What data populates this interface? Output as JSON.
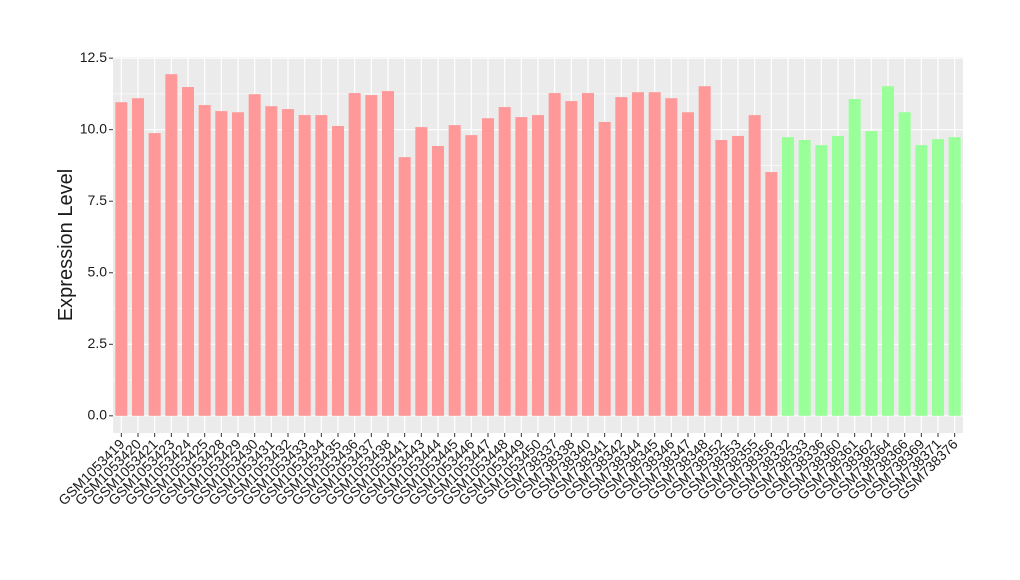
{
  "chart_data": {
    "type": "bar",
    "y_label": "Expression Level",
    "categories": [
      "GSM1053419",
      "GSM1053420",
      "GSM1053421",
      "GSM1053423",
      "GSM1053424",
      "GSM1053425",
      "GSM1053428",
      "GSM1053429",
      "GSM1053430",
      "GSM1053431",
      "GSM1053432",
      "GSM1053433",
      "GSM1053434",
      "GSM1053435",
      "GSM1053436",
      "GSM1053437",
      "GSM1053438",
      "GSM1053441",
      "GSM1053443",
      "GSM1053444",
      "GSM1053445",
      "GSM1053446",
      "GSM1053447",
      "GSM1053448",
      "GSM1053449",
      "GSM1053450",
      "GSM738337",
      "GSM738338",
      "GSM738340",
      "GSM738341",
      "GSM738342",
      "GSM738344",
      "GSM738345",
      "GSM738346",
      "GSM738347",
      "GSM738348",
      "GSM738352",
      "GSM738353",
      "GSM738355",
      "GSM738356",
      "GSM738332",
      "GSM738333",
      "GSM738336",
      "GSM738360",
      "GSM738361",
      "GSM738362",
      "GSM738364",
      "GSM738366",
      "GSM738369",
      "GSM738371",
      "GSM738376"
    ],
    "values": [
      10.96,
      11.1,
      9.88,
      11.94,
      11.49,
      10.86,
      10.65,
      10.61,
      11.24,
      10.82,
      10.72,
      10.51,
      10.51,
      10.13,
      11.28,
      11.21,
      11.35,
      9.04,
      10.09,
      9.43,
      10.16,
      9.81,
      10.4,
      10.79,
      10.44,
      10.51,
      11.28,
      11.0,
      11.28,
      10.27,
      11.14,
      11.31,
      11.31,
      11.1,
      10.61,
      11.52,
      9.64,
      9.78,
      10.51,
      8.52,
      9.74,
      9.64,
      9.46,
      9.78,
      11.07,
      9.95,
      11.52,
      10.61,
      9.46,
      9.67,
      9.74
    ],
    "colors": [
      "#ff9999",
      "#ff9999",
      "#ff9999",
      "#ff9999",
      "#ff9999",
      "#ff9999",
      "#ff9999",
      "#ff9999",
      "#ff9999",
      "#ff9999",
      "#ff9999",
      "#ff9999",
      "#ff9999",
      "#ff9999",
      "#ff9999",
      "#ff9999",
      "#ff9999",
      "#ff9999",
      "#ff9999",
      "#ff9999",
      "#ff9999",
      "#ff9999",
      "#ff9999",
      "#ff9999",
      "#ff9999",
      "#ff9999",
      "#ff9999",
      "#ff9999",
      "#ff9999",
      "#ff9999",
      "#ff9999",
      "#ff9999",
      "#ff9999",
      "#ff9999",
      "#ff9999",
      "#ff9999",
      "#ff9999",
      "#ff9999",
      "#ff9999",
      "#ff9999",
      "#99ff99",
      "#99ff99",
      "#99ff99",
      "#99ff99",
      "#99ff99",
      "#99ff99",
      "#99ff99",
      "#99ff99",
      "#99ff99",
      "#99ff99",
      "#99ff99"
    ],
    "ylim": [
      -0.6,
      12.54
    ],
    "yticks": [
      {
        "value": 0,
        "label": "0.0"
      },
      2.5,
      {
        "value": 5,
        "label": "5.0"
      },
      7.5,
      {
        "value": 10,
        "label": "10.0"
      },
      12.5
    ],
    "grid": true
  }
}
